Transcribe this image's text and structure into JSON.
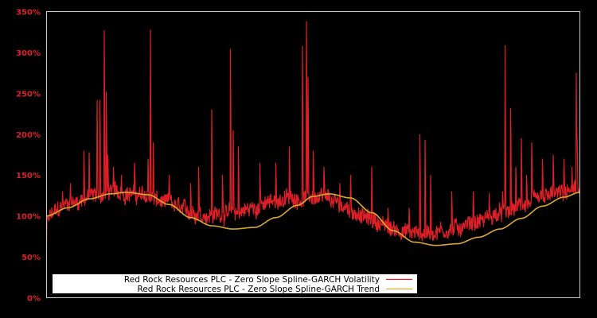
{
  "chart_data": {
    "type": "line",
    "title": "",
    "xlabel": "",
    "ylabel": "",
    "ylim": [
      0,
      350
    ],
    "y_ticks": [
      0,
      50,
      100,
      150,
      200,
      250,
      300,
      350
    ],
    "y_tick_labels": [
      "0%",
      "50%",
      "100%",
      "150%",
      "200%",
      "250%",
      "300%",
      "350%"
    ],
    "grid": false,
    "legend_position": "lower left",
    "background": "#000000",
    "axis_frame_color": "#c8c8c8",
    "tick_label_color": "#dd2027",
    "series": [
      {
        "name": "Red Rock Resources PLC - Zero Slope Spline-GARCH Volatility",
        "color": "#dd2027",
        "baseline_envelope": [
          [
            0,
            72
          ],
          [
            0.05,
            88
          ],
          [
            0.1,
            97
          ],
          [
            0.13,
            100
          ],
          [
            0.18,
            94
          ],
          [
            0.22,
            86
          ],
          [
            0.27,
            78
          ],
          [
            0.3,
            76
          ],
          [
            0.35,
            82
          ],
          [
            0.4,
            92
          ],
          [
            0.44,
            98
          ],
          [
            0.48,
            96
          ],
          [
            0.52,
            88
          ],
          [
            0.56,
            75
          ],
          [
            0.6,
            62
          ],
          [
            0.65,
            55
          ],
          [
            0.7,
            53
          ],
          [
            0.75,
            60
          ],
          [
            0.8,
            70
          ],
          [
            0.85,
            80
          ],
          [
            0.9,
            90
          ],
          [
            0.95,
            98
          ],
          [
            1.0,
            102
          ]
        ],
        "spikes": [
          [
            0.03,
            130
          ],
          [
            0.045,
            140
          ],
          [
            0.07,
            180
          ],
          [
            0.08,
            178
          ],
          [
            0.1,
            165
          ],
          [
            0.115,
            175
          ],
          [
            0.095,
            242
          ],
          [
            0.1,
            242
          ],
          [
            0.108,
            327
          ],
          [
            0.112,
            252
          ],
          [
            0.125,
            160
          ],
          [
            0.14,
            150
          ],
          [
            0.165,
            165
          ],
          [
            0.19,
            170
          ],
          [
            0.195,
            328
          ],
          [
            0.2,
            190
          ],
          [
            0.23,
            150
          ],
          [
            0.27,
            140
          ],
          [
            0.285,
            160
          ],
          [
            0.31,
            230
          ],
          [
            0.33,
            150
          ],
          [
            0.345,
            304
          ],
          [
            0.35,
            205
          ],
          [
            0.36,
            185
          ],
          [
            0.4,
            165
          ],
          [
            0.43,
            165
          ],
          [
            0.455,
            185
          ],
          [
            0.48,
            308
          ],
          [
            0.487,
            338
          ],
          [
            0.49,
            270
          ],
          [
            0.5,
            180
          ],
          [
            0.52,
            160
          ],
          [
            0.55,
            140
          ],
          [
            0.57,
            150
          ],
          [
            0.61,
            160
          ],
          [
            0.64,
            110
          ],
          [
            0.68,
            110
          ],
          [
            0.7,
            105
          ],
          [
            0.7,
            200
          ],
          [
            0.71,
            193
          ],
          [
            0.72,
            150
          ],
          [
            0.76,
            130
          ],
          [
            0.8,
            130
          ],
          [
            0.83,
            128
          ],
          [
            0.855,
            130
          ],
          [
            0.87,
            140
          ],
          [
            0.9,
            150
          ],
          [
            0.86,
            309
          ],
          [
            0.87,
            232
          ],
          [
            0.88,
            160
          ],
          [
            0.89,
            195
          ],
          [
            0.91,
            190
          ],
          [
            0.93,
            170
          ],
          [
            0.95,
            175
          ],
          [
            0.97,
            170
          ],
          [
            0.985,
            160
          ],
          [
            0.993,
            275
          ],
          [
            0.995,
            195
          ]
        ]
      },
      {
        "name": "Red Rock Resources PLC - Zero Slope Spline-GARCH Trend",
        "color": "#d9a82e",
        "points": [
          [
            0.0,
            100
          ],
          [
            0.04,
            110
          ],
          [
            0.08,
            121
          ],
          [
            0.12,
            127
          ],
          [
            0.15,
            129
          ],
          [
            0.19,
            126
          ],
          [
            0.23,
            114
          ],
          [
            0.27,
            98
          ],
          [
            0.31,
            88
          ],
          [
            0.35,
            84
          ],
          [
            0.39,
            86
          ],
          [
            0.43,
            98
          ],
          [
            0.47,
            113
          ],
          [
            0.5,
            124
          ],
          [
            0.53,
            127
          ],
          [
            0.57,
            122
          ],
          [
            0.61,
            104
          ],
          [
            0.65,
            82
          ],
          [
            0.69,
            68
          ],
          [
            0.73,
            64
          ],
          [
            0.77,
            66
          ],
          [
            0.81,
            74
          ],
          [
            0.85,
            84
          ],
          [
            0.89,
            97
          ],
          [
            0.93,
            112
          ],
          [
            0.97,
            123
          ],
          [
            1.0,
            129
          ],
          [
            1.0,
            131
          ]
        ]
      }
    ]
  },
  "legend": {
    "items": [
      {
        "label": "Red Rock Resources PLC - Zero Slope Spline-GARCH Volatility",
        "color": "#dd2027"
      },
      {
        "label": "Red Rock Resources PLC - Zero Slope Spline-GARCH Trend",
        "color": "#d9a82e"
      }
    ]
  }
}
